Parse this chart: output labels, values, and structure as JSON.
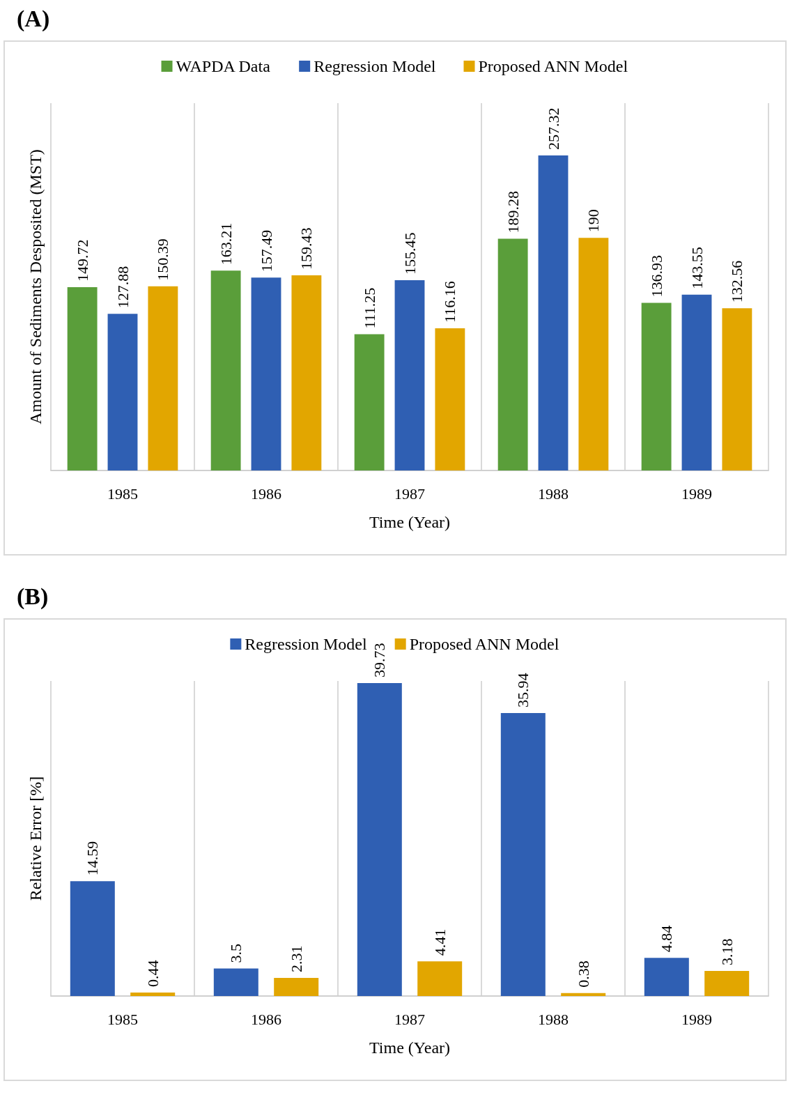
{
  "chart_data": [
    {
      "type": "bar",
      "title": "(A)",
      "xlabel": "Time (Year)",
      "ylabel": "Amount of Sediments Desposited (MST)",
      "categories": [
        "1985",
        "1986",
        "1987",
        "1988",
        "1989"
      ],
      "series": [
        {
          "name": "WAPDA Data",
          "color": "#5a9e3a",
          "values": [
            149.72,
            163.21,
            111.25,
            189.28,
            136.93
          ]
        },
        {
          "name": "Regression Model",
          "color": "#2f5fb3",
          "values": [
            127.88,
            157.49,
            155.45,
            257.32,
            143.55
          ]
        },
        {
          "name": "Proposed ANN Model",
          "color": "#e2a600",
          "values": [
            150.39,
            159.43,
            116.16,
            190,
            132.56
          ]
        }
      ],
      "data_labels": true,
      "grid": "x",
      "legend": "top"
    },
    {
      "type": "bar",
      "title": "(B)",
      "xlabel": "Time (Year)",
      "ylabel": "Relative Error [%]",
      "categories": [
        "1985",
        "1986",
        "1987",
        "1988",
        "1989"
      ],
      "series": [
        {
          "name": "Regression Model",
          "color": "#2f5fb3",
          "values": [
            14.59,
            3.5,
            39.73,
            35.94,
            4.84
          ]
        },
        {
          "name": "Proposed ANN Model",
          "color": "#e2a600",
          "values": [
            0.44,
            2.31,
            4.41,
            0.38,
            3.18
          ]
        }
      ],
      "data_labels": true,
      "grid": "x",
      "legend": "top"
    }
  ]
}
